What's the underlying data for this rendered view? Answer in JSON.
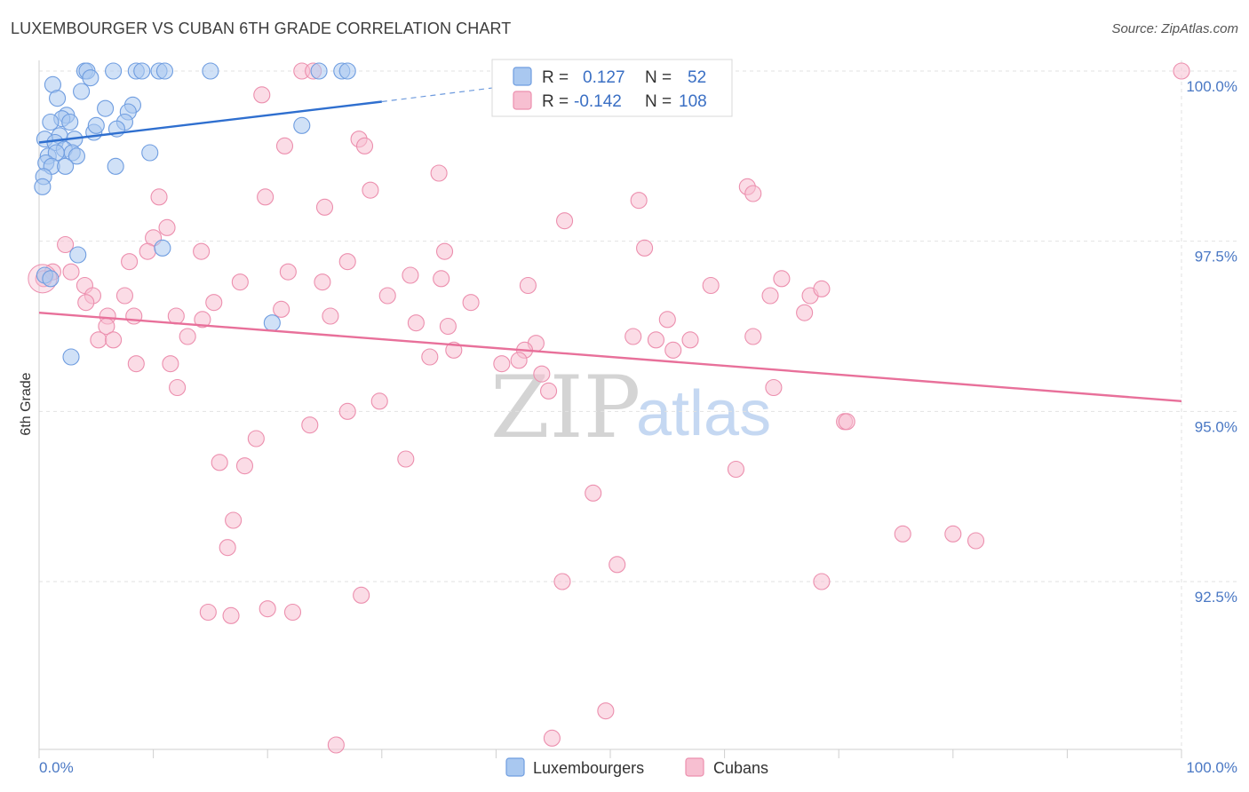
{
  "title": "LUXEMBOURGER VS CUBAN 6TH GRADE CORRELATION CHART",
  "source": "Source: ZipAtlas.com",
  "watermark": {
    "zip": "ZIP",
    "atlas": "atlas"
  },
  "colors": {
    "blue_fill": "#a9c8f0",
    "blue_stroke": "#6f9de0",
    "blue_line": "#2f6fcf",
    "pink_fill": "#f7bfd1",
    "pink_stroke": "#ec8fae",
    "pink_line": "#e8709a",
    "axis_text": "#4a78c4",
    "grid": "#e2e2e2"
  },
  "chart_data": {
    "type": "scatter",
    "title": "LUXEMBOURGER VS CUBAN 6TH GRADE CORRELATION CHART",
    "xlabel": "",
    "ylabel": "6th Grade",
    "xlim": [
      0,
      100
    ],
    "ylim": [
      90.1,
      100.2
    ],
    "x_tick_labels": [
      "0.0%",
      "100.0%"
    ],
    "y_ticks": [
      {
        "value": 100.0,
        "label": "100.0%"
      },
      {
        "value": 97.5,
        "label": "97.5%"
      },
      {
        "value": 95.0,
        "label": "95.0%"
      },
      {
        "value": 92.5,
        "label": "92.5%"
      }
    ],
    "legend": {
      "r_label": "R =",
      "n_label": "N =",
      "entries": [
        {
          "series": "Luxembourgers",
          "r": "0.127",
          "n": "52"
        },
        {
          "series": "Cubans",
          "r": "-0.142",
          "n": "108"
        }
      ]
    },
    "series": [
      {
        "name": "Luxembourgers",
        "color": "blue",
        "trend": {
          "x0": 0.0,
          "y0": 98.95,
          "x1": 30.0,
          "y1": 99.55,
          "dash_to_x": 42.0,
          "dash_to_y": 99.8
        },
        "points": [
          [
            4.0,
            100.0
          ],
          [
            4.2,
            100.0
          ],
          [
            6.5,
            100.0
          ],
          [
            8.5,
            100.0
          ],
          [
            9.0,
            100.0
          ],
          [
            10.5,
            100.0
          ],
          [
            11.0,
            100.0
          ],
          [
            15.0,
            100.0
          ],
          [
            24.5,
            100.0
          ],
          [
            26.5,
            100.0
          ],
          [
            27.0,
            100.0
          ],
          [
            4.5,
            99.9
          ],
          [
            1.2,
            99.8
          ],
          [
            3.7,
            99.7
          ],
          [
            1.6,
            99.6
          ],
          [
            8.2,
            99.5
          ],
          [
            5.8,
            99.45
          ],
          [
            7.8,
            99.4
          ],
          [
            2.4,
            99.35
          ],
          [
            2.0,
            99.3
          ],
          [
            2.7,
            99.25
          ],
          [
            1.0,
            99.25
          ],
          [
            7.5,
            99.25
          ],
          [
            23.0,
            99.2
          ],
          [
            4.8,
            99.1
          ],
          [
            5.0,
            99.2
          ],
          [
            6.8,
            99.15
          ],
          [
            1.8,
            99.05
          ],
          [
            3.1,
            99.0
          ],
          [
            0.5,
            99.0
          ],
          [
            1.4,
            98.95
          ],
          [
            2.2,
            98.85
          ],
          [
            0.8,
            98.75
          ],
          [
            1.5,
            98.8
          ],
          [
            2.9,
            98.8
          ],
          [
            3.3,
            98.75
          ],
          [
            9.7,
            98.8
          ],
          [
            0.6,
            98.65
          ],
          [
            1.1,
            98.6
          ],
          [
            2.3,
            98.6
          ],
          [
            6.7,
            98.6
          ],
          [
            0.4,
            98.45
          ],
          [
            0.3,
            98.3
          ],
          [
            3.4,
            97.3
          ],
          [
            10.8,
            97.4
          ],
          [
            0.5,
            97.0
          ],
          [
            1.0,
            96.95
          ],
          [
            20.4,
            96.3
          ],
          [
            2.8,
            95.8
          ]
        ]
      },
      {
        "name": "Cubans",
        "color": "pink",
        "trend": {
          "x0": 0.0,
          "y0": 96.45,
          "x1": 100.0,
          "y1": 95.15
        },
        "points": [
          [
            23.0,
            100.0
          ],
          [
            24.0,
            100.0
          ],
          [
            100.0,
            100.0
          ],
          [
            19.5,
            99.65
          ],
          [
            28.0,
            99.0
          ],
          [
            28.5,
            98.9
          ],
          [
            21.5,
            98.9
          ],
          [
            35.0,
            98.5
          ],
          [
            62.0,
            98.3
          ],
          [
            62.5,
            98.2
          ],
          [
            29.0,
            98.25
          ],
          [
            10.5,
            98.15
          ],
          [
            19.8,
            98.15
          ],
          [
            52.5,
            98.1
          ],
          [
            25.0,
            98.0
          ],
          [
            46.0,
            97.8
          ],
          [
            11.2,
            97.7
          ],
          [
            10.0,
            97.55
          ],
          [
            2.3,
            97.45
          ],
          [
            53.0,
            97.4
          ],
          [
            9.5,
            97.35
          ],
          [
            14.2,
            97.35
          ],
          [
            35.5,
            97.35
          ],
          [
            27.0,
            97.2
          ],
          [
            7.9,
            97.2
          ],
          [
            1.2,
            97.05
          ],
          [
            2.8,
            97.05
          ],
          [
            21.8,
            97.05
          ],
          [
            32.5,
            97.0
          ],
          [
            17.6,
            96.9
          ],
          [
            24.8,
            96.9
          ],
          [
            35.2,
            96.95
          ],
          [
            42.8,
            96.85
          ],
          [
            58.8,
            96.85
          ],
          [
            65.0,
            96.95
          ],
          [
            0.4,
            96.95
          ],
          [
            4.0,
            96.85
          ],
          [
            7.5,
            96.7
          ],
          [
            4.7,
            96.7
          ],
          [
            30.5,
            96.7
          ],
          [
            37.8,
            96.6
          ],
          [
            4.1,
            96.6
          ],
          [
            15.3,
            96.6
          ],
          [
            67.5,
            96.7
          ],
          [
            68.5,
            96.8
          ],
          [
            64.0,
            96.7
          ],
          [
            67.0,
            96.45
          ],
          [
            21.2,
            96.5
          ],
          [
            8.3,
            96.4
          ],
          [
            12.0,
            96.4
          ],
          [
            6.0,
            96.4
          ],
          [
            14.3,
            96.35
          ],
          [
            25.5,
            96.4
          ],
          [
            33.0,
            96.3
          ],
          [
            35.8,
            96.25
          ],
          [
            55.0,
            96.35
          ],
          [
            5.9,
            96.25
          ],
          [
            13.0,
            96.1
          ],
          [
            52.0,
            96.1
          ],
          [
            54.0,
            96.05
          ],
          [
            57.0,
            96.05
          ],
          [
            62.5,
            96.1
          ],
          [
            43.5,
            96.0
          ],
          [
            42.5,
            95.9
          ],
          [
            55.5,
            95.9
          ],
          [
            36.3,
            95.9
          ],
          [
            5.2,
            96.05
          ],
          [
            6.5,
            96.05
          ],
          [
            34.2,
            95.8
          ],
          [
            42.0,
            95.75
          ],
          [
            8.5,
            95.7
          ],
          [
            11.5,
            95.7
          ],
          [
            40.5,
            95.7
          ],
          [
            44.0,
            95.55
          ],
          [
            64.3,
            95.35
          ],
          [
            12.1,
            95.35
          ],
          [
            44.6,
            95.3
          ],
          [
            29.8,
            95.15
          ],
          [
            27.0,
            95.0
          ],
          [
            23.7,
            94.8
          ],
          [
            70.5,
            94.85
          ],
          [
            70.7,
            94.85
          ],
          [
            19.0,
            94.6
          ],
          [
            32.1,
            94.3
          ],
          [
            15.8,
            94.25
          ],
          [
            18.0,
            94.2
          ],
          [
            61.0,
            94.15
          ],
          [
            48.5,
            93.8
          ],
          [
            17.0,
            93.4
          ],
          [
            75.6,
            93.2
          ],
          [
            80.0,
            93.2
          ],
          [
            82.0,
            93.1
          ],
          [
            16.5,
            93.0
          ],
          [
            50.6,
            92.75
          ],
          [
            45.8,
            92.5
          ],
          [
            68.5,
            92.5
          ],
          [
            28.2,
            92.3
          ],
          [
            20.0,
            92.1
          ],
          [
            22.2,
            92.05
          ],
          [
            14.8,
            92.05
          ],
          [
            16.8,
            92.0
          ],
          [
            49.6,
            90.6
          ],
          [
            26.0,
            90.1
          ],
          [
            44.9,
            90.2
          ]
        ]
      }
    ]
  },
  "bottom_legend": {
    "items": [
      "Luxembourgers",
      "Cubans"
    ]
  }
}
